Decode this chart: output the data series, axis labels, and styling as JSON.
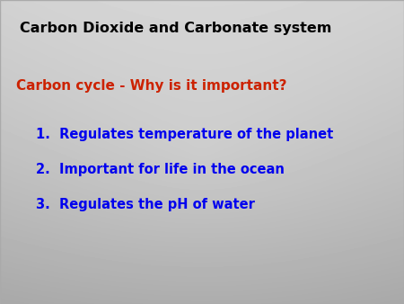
{
  "title": "Carbon Dioxide and Carbonate system",
  "title_color": "#000000",
  "title_fontsize": 11.5,
  "title_bold": true,
  "subtitle": "Carbon cycle - Why is it important?",
  "subtitle_color": "#cc2200",
  "subtitle_fontsize": 11,
  "subtitle_bold": true,
  "items": [
    "1.  Regulates temperature of the planet",
    "2.  Important for life in the ocean",
    "3.  Regulates the pH of water"
  ],
  "items_color": "#0000ee",
  "items_fontsize": 10.5,
  "items_bold": true,
  "border_color": "#aaaaaa"
}
